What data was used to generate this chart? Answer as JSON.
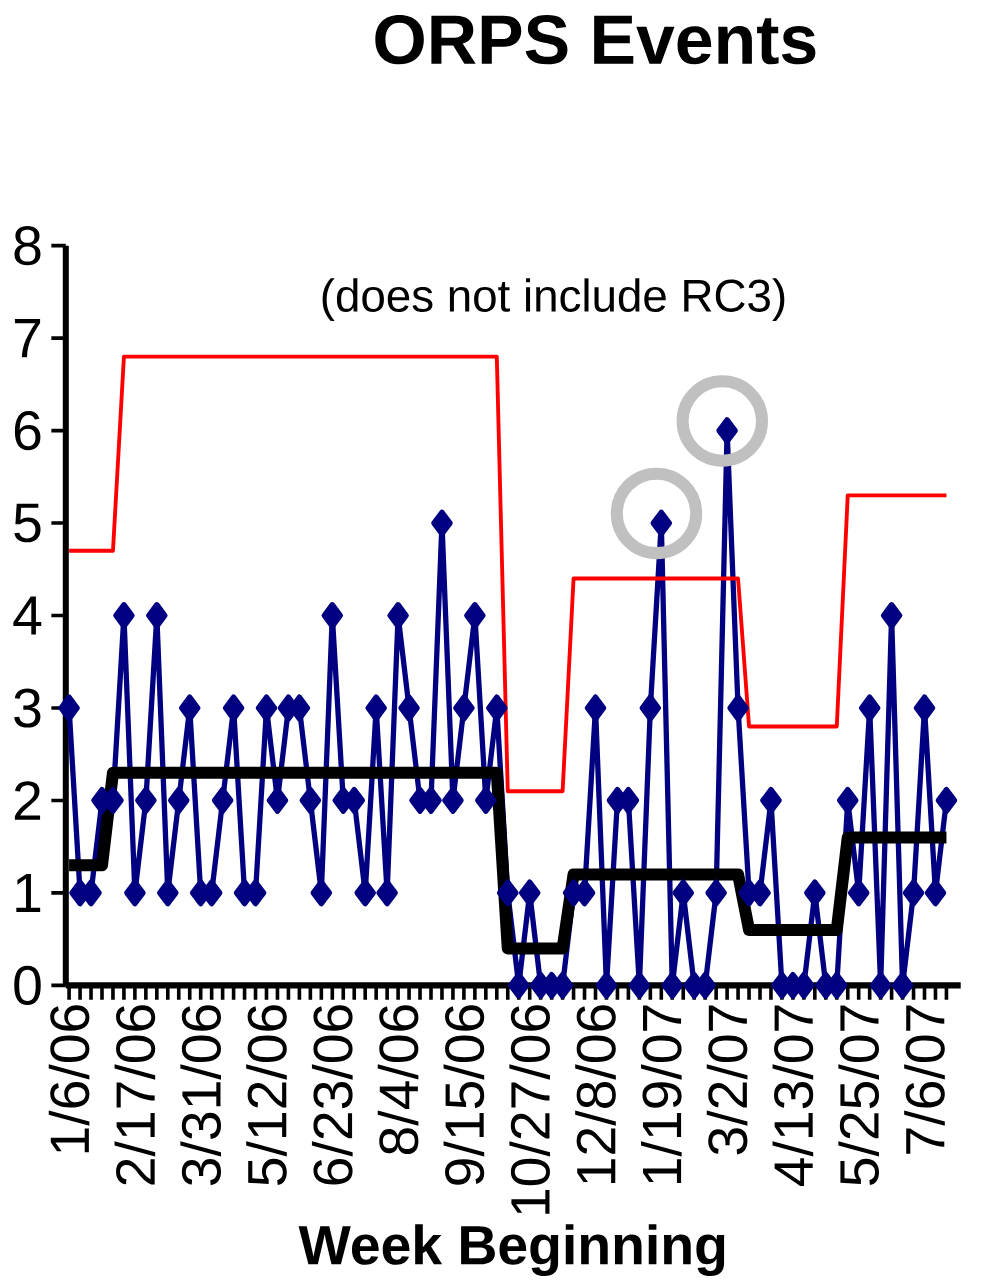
{
  "chart_data": {
    "type": "line",
    "title": "ORPS Events",
    "subtitle": "(does not include RC3)",
    "xlabel": "Week Beginning",
    "categories": [
      "1/6/06",
      null,
      null,
      null,
      null,
      null,
      "2/17/06",
      null,
      null,
      null,
      null,
      null,
      "3/31/06",
      null,
      null,
      null,
      null,
      null,
      "5/12/06",
      null,
      null,
      null,
      null,
      null,
      "6/23/06",
      null,
      null,
      null,
      null,
      null,
      "8/4/06",
      null,
      null,
      null,
      null,
      null,
      "9/15/06",
      null,
      null,
      null,
      null,
      null,
      "10/27/06",
      null,
      null,
      null,
      null,
      null,
      "12/8/06",
      null,
      null,
      null,
      null,
      null,
      "1/19/07",
      null,
      null,
      null,
      null,
      null,
      "3/2/07",
      null,
      null,
      null,
      null,
      null,
      "4/13/07",
      null,
      null,
      null,
      null,
      null,
      "5/25/07",
      null,
      null,
      null,
      null,
      null,
      "7/6/07",
      null,
      null
    ],
    "series": [
      {
        "color": "#000080",
        "marker": "diamond",
        "values": [
          3,
          1,
          1,
          2,
          2,
          4,
          1,
          2,
          4,
          1,
          2,
          3,
          1,
          1,
          2,
          3,
          1,
          1,
          3,
          2,
          3,
          3,
          2,
          1,
          4,
          2,
          2,
          1,
          3,
          1,
          4,
          3,
          2,
          2,
          5,
          2,
          3,
          4,
          2,
          3,
          1,
          0,
          1,
          0,
          0,
          0,
          1,
          1,
          3,
          0,
          2,
          2,
          0,
          3,
          5,
          0,
          1,
          0,
          0,
          1,
          6,
          3,
          1,
          1,
          2,
          0,
          0,
          0,
          1,
          0,
          0,
          2,
          1,
          3,
          0,
          4,
          0,
          1,
          3,
          1,
          2
        ]
      },
      {
        "color": "#000000",
        "marker": "none",
        "values": [
          1.3,
          1.3,
          1.3,
          1.3,
          2.3,
          2.3,
          2.3,
          2.3,
          2.3,
          2.3,
          2.3,
          2.3,
          2.3,
          2.3,
          2.3,
          2.3,
          2.3,
          2.3,
          2.3,
          2.3,
          2.3,
          2.3,
          2.3,
          2.3,
          2.3,
          2.3,
          2.3,
          2.3,
          2.3,
          2.3,
          2.3,
          2.3,
          2.3,
          2.3,
          2.3,
          2.3,
          2.3,
          2.3,
          2.3,
          2.3,
          0.4,
          0.4,
          0.4,
          0.4,
          0.4,
          0.4,
          1.2,
          1.2,
          1.2,
          1.2,
          1.2,
          1.2,
          1.2,
          1.2,
          1.2,
          1.2,
          1.2,
          1.2,
          1.2,
          1.2,
          1.2,
          1.2,
          0.6,
          0.6,
          0.6,
          0.6,
          0.6,
          0.6,
          0.6,
          0.6,
          0.6,
          1.6,
          1.6,
          1.6,
          1.6,
          1.6,
          1.6,
          1.6,
          1.6,
          1.6,
          1.6
        ]
      },
      {
        "color": "#ff0000",
        "marker": "none",
        "values": [
          4.7,
          4.7,
          4.7,
          4.7,
          4.7,
          6.8,
          6.8,
          6.8,
          6.8,
          6.8,
          6.8,
          6.8,
          6.8,
          6.8,
          6.8,
          6.8,
          6.8,
          6.8,
          6.8,
          6.8,
          6.8,
          6.8,
          6.8,
          6.8,
          6.8,
          6.8,
          6.8,
          6.8,
          6.8,
          6.8,
          6.8,
          6.8,
          6.8,
          6.8,
          6.8,
          6.8,
          6.8,
          6.8,
          6.8,
          6.8,
          2.1,
          2.1,
          2.1,
          2.1,
          2.1,
          2.1,
          4.4,
          4.4,
          4.4,
          4.4,
          4.4,
          4.4,
          4.4,
          4.4,
          4.4,
          4.4,
          4.4,
          4.4,
          4.4,
          4.4,
          4.4,
          4.4,
          2.8,
          2.8,
          2.8,
          2.8,
          2.8,
          2.8,
          2.8,
          2.8,
          2.8,
          5.3,
          5.3,
          5.3,
          5.3,
          5.3,
          5.3,
          5.3,
          5.3,
          5.3,
          5.3
        ]
      }
    ],
    "ylim": [
      0,
      8
    ],
    "yticks": [
      0,
      1,
      2,
      3,
      4,
      5,
      6,
      7,
      8
    ]
  }
}
